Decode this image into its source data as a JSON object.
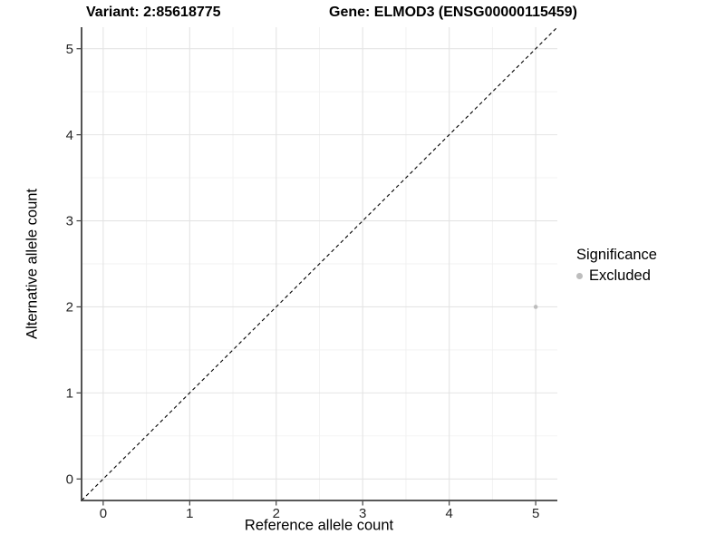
{
  "chart_data": {
    "type": "scatter",
    "title_left": "Variant: 2:85618775",
    "title_right": "Gene: ELMOD3 (ENSG00000115459)",
    "xlabel": "Reference allele count",
    "ylabel": "Alternative allele count",
    "xlim": [
      -0.25,
      5.25
    ],
    "ylim": [
      -0.25,
      5.25
    ],
    "x_ticks": [
      0,
      1,
      2,
      3,
      4,
      5
    ],
    "y_ticks": [
      0,
      1,
      2,
      3,
      4,
      5
    ],
    "x_minor_ticks": [
      0.5,
      1.5,
      2.5,
      3.5,
      4.5
    ],
    "y_minor_ticks": [
      0.5,
      1.5,
      2.5,
      3.5,
      4.5
    ],
    "grid": true,
    "identity_line": {
      "style": "dashed",
      "from": [
        -0.25,
        -0.25
      ],
      "to": [
        5.25,
        5.25
      ],
      "color": "#000000"
    },
    "series": [
      {
        "name": "Excluded",
        "color": "#bdbdbd",
        "points": [
          {
            "x": 5,
            "y": 2
          }
        ]
      }
    ],
    "legend": {
      "title": "Significance",
      "position": "right",
      "items": [
        {
          "label": "Excluded",
          "color": "#bdbdbd"
        }
      ]
    },
    "style": {
      "background": "#ffffff",
      "grid_major_color": "#e4e4e4",
      "grid_minor_color": "#f1f1f1",
      "axis_line_color": "#404040",
      "tick_label_color": "#262626",
      "point_radius": 2.3,
      "tick_font_size": 15
    }
  }
}
